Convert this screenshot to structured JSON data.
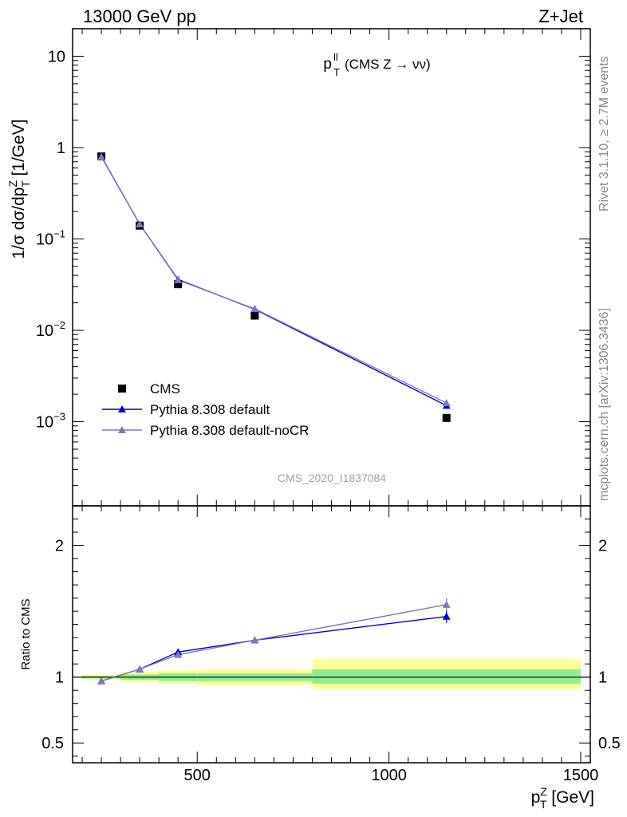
{
  "header": {
    "left": "13000 GeV pp",
    "right": "Z+Jet"
  },
  "side_labels": {
    "rivet": "Rivet 3.1.10, ≥ 2.7M events",
    "mcplots": "mcplots.cern.ch [arXiv:1306.3436]"
  },
  "colors": {
    "data": "#000000",
    "default": "#0000cc",
    "noCR": "#7a7ab8",
    "band_inner": "#90ee90",
    "band_outer": "#ffff99"
  },
  "chart_data": [
    {
      "type": "line",
      "title_main": "p",
      "title_sup": "ll",
      "title_sub": "T",
      "title_rest": "(CMS Z → νν)",
      "analysis_id": "CMS_2020_I1837084",
      "ylabel": "1/σ dσ/dp_T^Z [1/GeV]",
      "ylabel_parts": {
        "pre": "1/σ dσ/dp",
        "sup": "Z",
        "sub": "T",
        "post": " [1/GeV]"
      },
      "yscale": "log",
      "ylim": [
        0.00012,
        20
      ],
      "xlim": [
        175,
        1525
      ],
      "yticks": [
        {
          "v": 10,
          "base": "10",
          "exp": ""
        },
        {
          "v": 1,
          "base": "1",
          "exp": ""
        },
        {
          "v": 0.1,
          "base": "10",
          "exp": "−1"
        },
        {
          "v": 0.01,
          "base": "10",
          "exp": "−2"
        },
        {
          "v": 0.001,
          "base": "10",
          "exp": "−3"
        }
      ],
      "legend_position": "lower-left",
      "series": [
        {
          "name": "CMS",
          "kind": "data",
          "x": [
            250,
            350,
            450,
            650,
            1150
          ],
          "y": [
            0.8,
            0.14,
            0.032,
            0.0145,
            0.0011
          ]
        },
        {
          "name": "Pythia 8.308 default",
          "kind": "default",
          "x": [
            250,
            350,
            450,
            650,
            1150
          ],
          "y": [
            0.8,
            0.145,
            0.036,
            0.017,
            0.0015
          ]
        },
        {
          "name": "Pythia 8.308 default-noCR",
          "kind": "noCR",
          "x": [
            250,
            350,
            450,
            650,
            1150
          ],
          "y": [
            0.79,
            0.145,
            0.0355,
            0.0172,
            0.0016
          ]
        }
      ]
    },
    {
      "type": "line",
      "ylabel": "Ratio to CMS",
      "xlabel_parts": {
        "pre": "p",
        "sup": "Z",
        "sub": "T",
        "post": " [GeV]"
      },
      "ylim": [
        0.35,
        2.3
      ],
      "xlim": [
        175,
        1525
      ],
      "yticks": [
        0.5,
        1,
        2
      ],
      "xticks": [
        500,
        1000,
        1500
      ],
      "bands": [
        {
          "x": [
            200,
            300
          ],
          "inner": [
            0.99,
            1.01
          ],
          "outer": [
            0.98,
            1.02
          ]
        },
        {
          "x": [
            300,
            400
          ],
          "inner": [
            0.98,
            1.02
          ],
          "outer": [
            0.96,
            1.04
          ]
        },
        {
          "x": [
            400,
            500
          ],
          "inner": [
            0.97,
            1.03
          ],
          "outer": [
            0.95,
            1.05
          ]
        },
        {
          "x": [
            500,
            800
          ],
          "inner": [
            0.97,
            1.03
          ],
          "outer": [
            0.94,
            1.06
          ]
        },
        {
          "x": [
            800,
            1500
          ],
          "inner": [
            0.95,
            1.06
          ],
          "outer": [
            0.91,
            1.14
          ]
        }
      ],
      "series": [
        {
          "name": "Pythia 8.308 default",
          "kind": "default",
          "x": [
            250,
            350,
            450,
            650,
            1150
          ],
          "y": [
            0.97,
            1.06,
            1.19,
            1.28,
            1.46
          ]
        },
        {
          "name": "Pythia 8.308 default-noCR",
          "kind": "noCR",
          "x": [
            250,
            350,
            450,
            650,
            1150
          ],
          "y": [
            0.97,
            1.06,
            1.17,
            1.28,
            1.55
          ]
        }
      ]
    }
  ]
}
